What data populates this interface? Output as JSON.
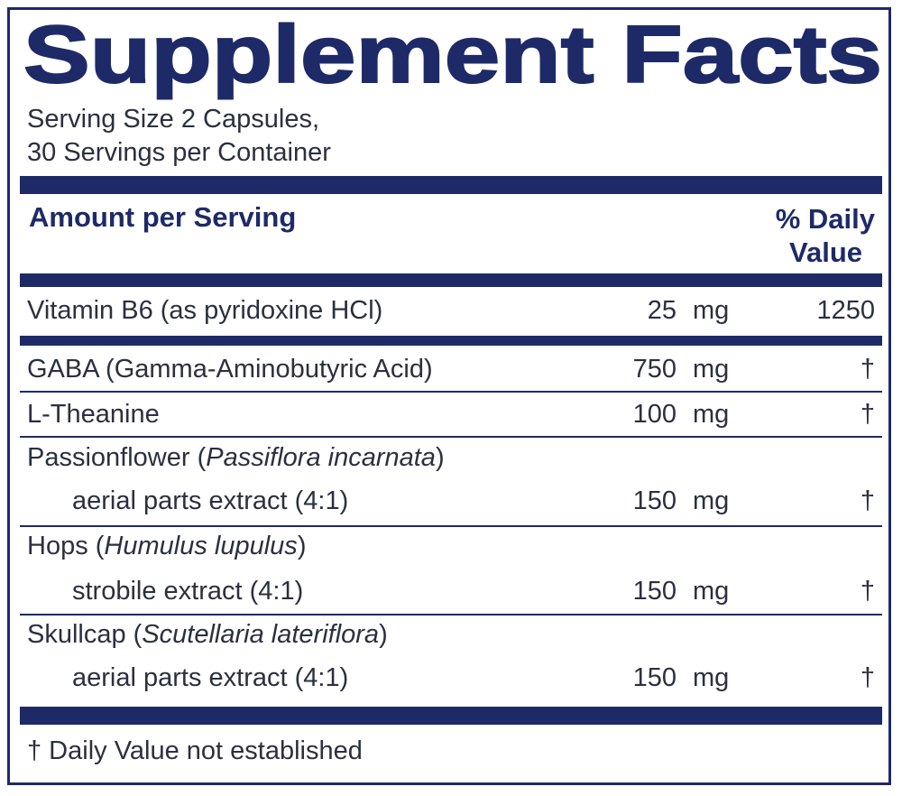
{
  "header": {
    "title": "Supplement Facts",
    "serving_size": "Serving Size 2 Capsules,",
    "servings": "30 Servings per Container"
  },
  "table": {
    "header": {
      "amount": "Amount per Serving",
      "dv_line1": "% Daily",
      "dv_line2": "Value"
    },
    "rows": [
      {
        "name": "Vitamin B6 (as pyridoxine HCl)",
        "amount": "25",
        "unit": "mg",
        "dv": "1250"
      },
      {
        "name": "GABA (Gamma-Aminobutyric Acid)",
        "amount": "750",
        "unit": "mg",
        "dv": "†"
      },
      {
        "name": "L-Theanine",
        "amount": "100",
        "unit": "mg",
        "dv": "†"
      },
      {
        "name_parts": [
          "Passionflower (",
          "Passiflora incarnata",
          ")"
        ],
        "detail": "aerial parts extract (4:1)",
        "amount": "150",
        "unit": "mg",
        "dv": "†"
      },
      {
        "name_parts": [
          "Hops (",
          "Humulus lupulus",
          ")"
        ],
        "detail": "strobile extract (4:1)",
        "amount": "150",
        "unit": "mg",
        "dv": "†"
      },
      {
        "name_parts": [
          "Skullcap (",
          "Scutellaria lateriflora",
          ")"
        ],
        "detail": "aerial parts extract (4:1)",
        "amount": "150",
        "unit": "mg",
        "dv": "†"
      }
    ]
  },
  "footnote": "† Daily Value not established"
}
